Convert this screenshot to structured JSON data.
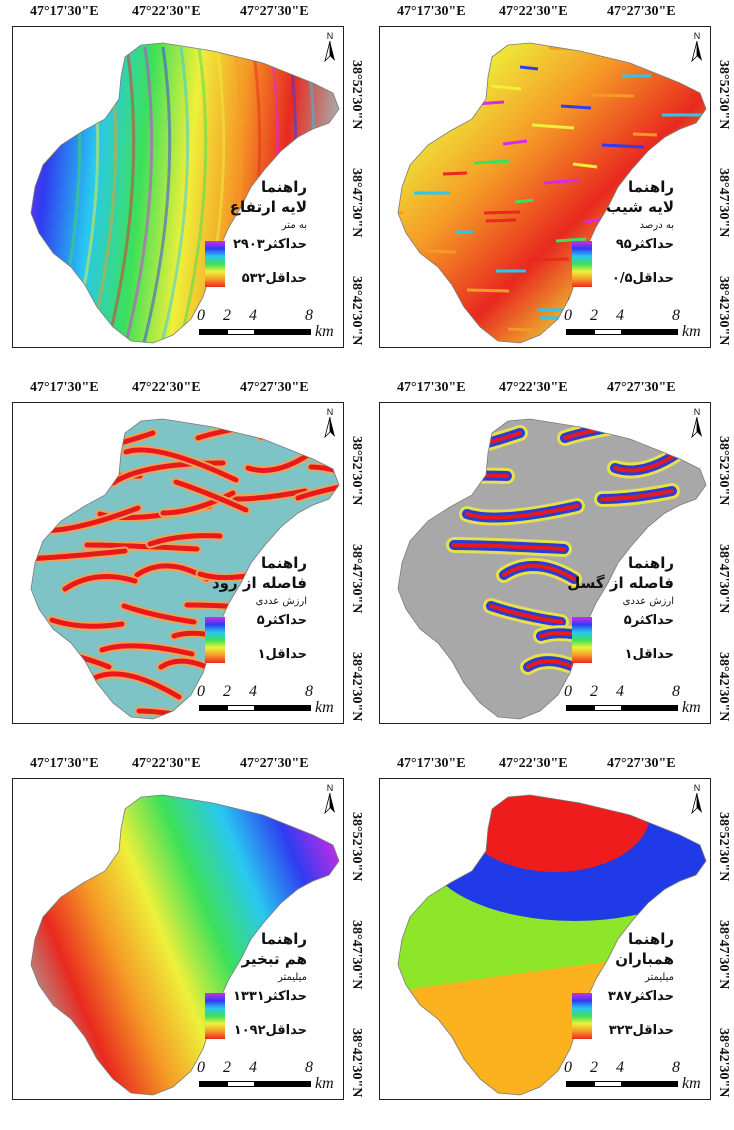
{
  "longitude_ticks": [
    "47°17'30\"E",
    "47°22'30\"E",
    "47°27'30\"E"
  ],
  "latitude_ticks": [
    "38°52'30\"N",
    "38°47'30\"N",
    "38°42'30\"N"
  ],
  "north_arrow_label": "N",
  "scale_bar": {
    "ticks": [
      "0",
      "2",
      "4",
      "8"
    ],
    "unit": "km"
  },
  "panels": [
    {
      "legend_title": "راهنما",
      "layer": "لایه ارتفاع",
      "unit": "به متر",
      "max": "حداکثر۲۹۰۳",
      "min": "حداقل۵۳۲",
      "map_type": "elevation"
    },
    {
      "legend_title": "راهنما",
      "layer": "لایه شیب",
      "unit": "به درصد",
      "max": "حداکثر۹۵",
      "min": "حداقل۰/۵",
      "map_type": "slope"
    },
    {
      "legend_title": "راهنما",
      "layer": "فاصله از رود",
      "unit": "ارزش عددی",
      "max": "حداکثر۵",
      "min": "حداقل۱",
      "map_type": "river_distance"
    },
    {
      "legend_title": "راهنما",
      "layer": "فاصله از گسل",
      "unit": "ارزش عددی",
      "max": "حداکثر۵",
      "min": "حداقل۱",
      "map_type": "fault_distance"
    },
    {
      "legend_title": "راهنما",
      "layer": "هم تبخیر",
      "unit": "میلیمتر",
      "max": "حداکثر۱۳۳۱",
      "min": "حداقل۱۰۹۲",
      "map_type": "evaporation"
    },
    {
      "legend_title": "راهنما",
      "layer": "همباران",
      "unit": "میلیمتر",
      "max": "حداکثر۳۸۷",
      "min": "حداقل۳۲۳",
      "map_type": "rainfall"
    }
  ],
  "colors": {
    "ramp": [
      "#d62be8",
      "#2f3cf0",
      "#29c8f0",
      "#3ce05a",
      "#eef03a",
      "#f59a26",
      "#e8291f"
    ],
    "nodata_gray": "#a8a8a8",
    "river_red": "#e8191c",
    "fault_blue": "#2a3cd6",
    "rain_red": "#ee1c1c",
    "rain_blue": "#1f3ae6",
    "rain_green": "#8ee62a",
    "rain_orange": "#fbb21e"
  }
}
